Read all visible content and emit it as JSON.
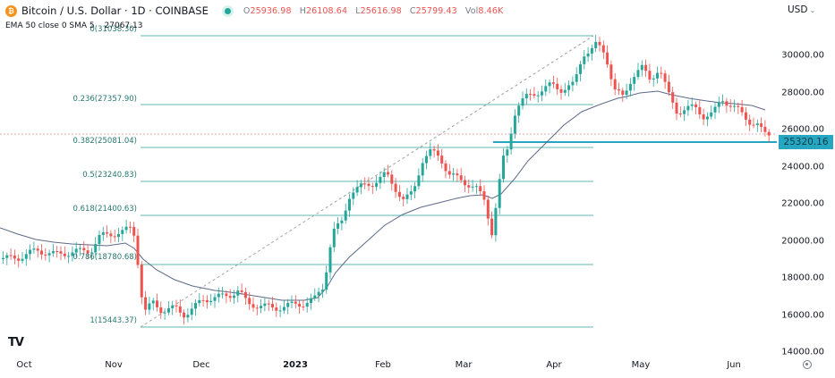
{
  "header": {
    "symbol_title": "Bitcoin / U.S. Dollar · 1D · COINBASE",
    "coin_glyph": "₿",
    "ohlc": {
      "open_key": "O",
      "open": "25936.98",
      "high_key": "H",
      "high": "26108.64",
      "low_key": "L",
      "low": "25616.98",
      "close_key": "C",
      "close": "25799.43",
      "vol_key": "Vol",
      "vol": "8.46K"
    },
    "indicator_label": "EMA 50 close 0 SMA 5",
    "indicator_value": "27067.13"
  },
  "y_axis": {
    "currency": "USD",
    "labels": [
      "30000.00",
      "28000.00",
      "26000.00",
      "24000.00",
      "22000.00",
      "20000.00",
      "18000.00",
      "16000.00",
      "14000.00"
    ],
    "current_price_tag": "25320.16"
  },
  "x_axis": {
    "labels": [
      "Oct",
      "Nov",
      "Dec",
      "2023",
      "Feb",
      "Mar",
      "Apr",
      "May",
      "Jun"
    ]
  },
  "fib_levels": [
    {
      "label": "0(31038.30)"
    },
    {
      "label": "0.236(27357.90)"
    },
    {
      "label": "0.382(25081.04)"
    },
    {
      "label": "0.5(23240.83)"
    },
    {
      "label": "0.618(21400.63)"
    },
    {
      "label": "0.786(18780.68)"
    },
    {
      "label": "1(15443.37)"
    }
  ],
  "colors": {
    "up": "#26a69a",
    "down": "#ef5350",
    "fib": "#5fb8b0",
    "ema": "#5d6a8a",
    "support": "#26a6c0"
  },
  "chart_data": {
    "type": "candlestick",
    "title": "Bitcoin / U.S. Dollar · 1D · COINBASE",
    "xlabel": "",
    "ylabel": "USD",
    "ylim": [
      14000,
      32000
    ],
    "x_ticks": [
      "Oct",
      "Nov",
      "Dec",
      "2023",
      "Feb",
      "Mar",
      "Apr",
      "May",
      "Jun"
    ],
    "y_ticks": [
      14000,
      16000,
      18000,
      20000,
      22000,
      24000,
      26000,
      28000,
      30000
    ],
    "last_ohlc": {
      "open": 25936.98,
      "high": 26108.64,
      "low": 25616.98,
      "close": 25799.43,
      "volume": "8.46K"
    },
    "indicator": {
      "name": "EMA 50",
      "value": 27067.13
    },
    "horizontal_support": 25320.16,
    "fibonacci_retracement": [
      {
        "ratio": 0,
        "price": 31038.3
      },
      {
        "ratio": 0.236,
        "price": 27357.9
      },
      {
        "ratio": 0.382,
        "price": 25081.04
      },
      {
        "ratio": 0.5,
        "price": 23240.83
      },
      {
        "ratio": 0.618,
        "price": 21400.63
      },
      {
        "ratio": 0.786,
        "price": 18780.68
      },
      {
        "ratio": 1,
        "price": 15443.37
      }
    ],
    "approx_closes_by_month": [
      {
        "month": "Oct",
        "close": 19500
      },
      {
        "month": "Nov",
        "close": 16500
      },
      {
        "month": "Dec",
        "close": 16550
      },
      {
        "month": "Jan",
        "close": 23100
      },
      {
        "month": "Feb",
        "close": 23150
      },
      {
        "month": "Mar",
        "close": 28400
      },
      {
        "month": "Apr",
        "close": 29250
      },
      {
        "month": "May",
        "close": 27200
      },
      {
        "month": "Jun",
        "close": 25800
      }
    ],
    "grid": false,
    "legend_position": "top-left"
  }
}
